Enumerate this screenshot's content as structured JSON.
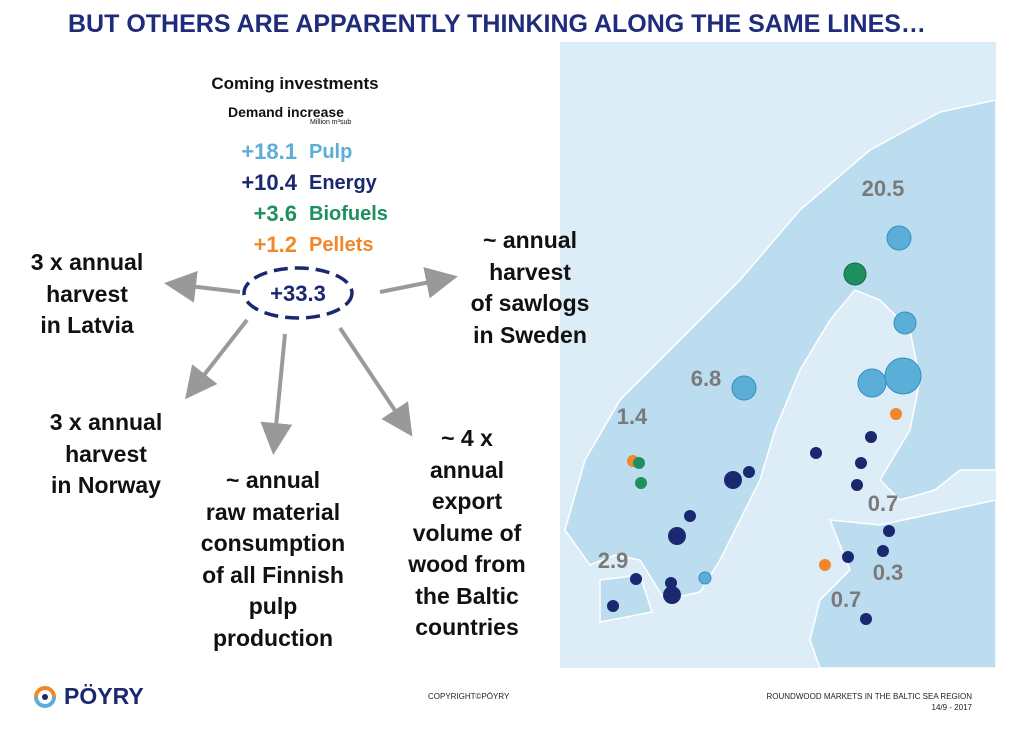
{
  "title": "BUT OTHERS ARE APPARENTLY THINKING ALONG THE SAME LINES…",
  "investments": {
    "heading": "Coming investments",
    "subheading": "Demand increase",
    "unit": "Million m³sub",
    "items": [
      {
        "value": "+18.1",
        "label": "Pulp",
        "color": "#5aaed8"
      },
      {
        "value": "+10.4",
        "label": "Energy",
        "color": "#1a2870"
      },
      {
        "value": "+3.6",
        "label": "Biofuels",
        "color": "#1e8f5e"
      },
      {
        "value": "+1.2",
        "label": "Pellets",
        "color": "#f0882a"
      }
    ],
    "total": "+33.3"
  },
  "comparisons": [
    "3 x annual\nharvest\nin Latvia",
    "~ annual\nharvest\nof sawlogs\nin Sweden",
    "3 x annual\nharvest\nin Norway",
    "~ annual\nraw material\nconsumption\nof all Finnish\npulp\nproduction",
    "~ 4 x\nannual\nexport\nvolume of\nwood from\nthe Baltic\ncountries"
  ],
  "map_labels": [
    "20.5",
    "6.8",
    "1.4",
    "2.9",
    "0.7",
    "0.3",
    "0.7"
  ],
  "footer": {
    "logo": "PÖYRY",
    "copyright": "COPYRIGHT©PÖYRY",
    "report": "ROUNDWOOD MARKETS IN THE BALTIC SEA REGION",
    "date": "14/9 - 2017"
  }
}
